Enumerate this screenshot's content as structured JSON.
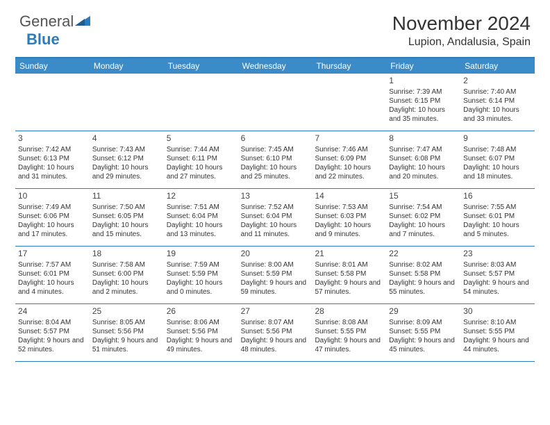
{
  "logo": {
    "text1": "General",
    "text2": "Blue"
  },
  "title": "November 2024",
  "location": "Lupion, Andalusia, Spain",
  "colors": {
    "header_bg": "#3b8bc9",
    "border": "#2b7bbf",
    "logo_blue": "#2b7bbf",
    "text": "#333333"
  },
  "weekdays": [
    "Sunday",
    "Monday",
    "Tuesday",
    "Wednesday",
    "Thursday",
    "Friday",
    "Saturday"
  ],
  "weeks": [
    [
      null,
      null,
      null,
      null,
      null,
      {
        "n": "1",
        "sr": "Sunrise: 7:39 AM",
        "ss": "Sunset: 6:15 PM",
        "dl": "Daylight: 10 hours and 35 minutes."
      },
      {
        "n": "2",
        "sr": "Sunrise: 7:40 AM",
        "ss": "Sunset: 6:14 PM",
        "dl": "Daylight: 10 hours and 33 minutes."
      }
    ],
    [
      {
        "n": "3",
        "sr": "Sunrise: 7:42 AM",
        "ss": "Sunset: 6:13 PM",
        "dl": "Daylight: 10 hours and 31 minutes."
      },
      {
        "n": "4",
        "sr": "Sunrise: 7:43 AM",
        "ss": "Sunset: 6:12 PM",
        "dl": "Daylight: 10 hours and 29 minutes."
      },
      {
        "n": "5",
        "sr": "Sunrise: 7:44 AM",
        "ss": "Sunset: 6:11 PM",
        "dl": "Daylight: 10 hours and 27 minutes."
      },
      {
        "n": "6",
        "sr": "Sunrise: 7:45 AM",
        "ss": "Sunset: 6:10 PM",
        "dl": "Daylight: 10 hours and 25 minutes."
      },
      {
        "n": "7",
        "sr": "Sunrise: 7:46 AM",
        "ss": "Sunset: 6:09 PM",
        "dl": "Daylight: 10 hours and 22 minutes."
      },
      {
        "n": "8",
        "sr": "Sunrise: 7:47 AM",
        "ss": "Sunset: 6:08 PM",
        "dl": "Daylight: 10 hours and 20 minutes."
      },
      {
        "n": "9",
        "sr": "Sunrise: 7:48 AM",
        "ss": "Sunset: 6:07 PM",
        "dl": "Daylight: 10 hours and 18 minutes."
      }
    ],
    [
      {
        "n": "10",
        "sr": "Sunrise: 7:49 AM",
        "ss": "Sunset: 6:06 PM",
        "dl": "Daylight: 10 hours and 17 minutes."
      },
      {
        "n": "11",
        "sr": "Sunrise: 7:50 AM",
        "ss": "Sunset: 6:05 PM",
        "dl": "Daylight: 10 hours and 15 minutes."
      },
      {
        "n": "12",
        "sr": "Sunrise: 7:51 AM",
        "ss": "Sunset: 6:04 PM",
        "dl": "Daylight: 10 hours and 13 minutes."
      },
      {
        "n": "13",
        "sr": "Sunrise: 7:52 AM",
        "ss": "Sunset: 6:04 PM",
        "dl": "Daylight: 10 hours and 11 minutes."
      },
      {
        "n": "14",
        "sr": "Sunrise: 7:53 AM",
        "ss": "Sunset: 6:03 PM",
        "dl": "Daylight: 10 hours and 9 minutes."
      },
      {
        "n": "15",
        "sr": "Sunrise: 7:54 AM",
        "ss": "Sunset: 6:02 PM",
        "dl": "Daylight: 10 hours and 7 minutes."
      },
      {
        "n": "16",
        "sr": "Sunrise: 7:55 AM",
        "ss": "Sunset: 6:01 PM",
        "dl": "Daylight: 10 hours and 5 minutes."
      }
    ],
    [
      {
        "n": "17",
        "sr": "Sunrise: 7:57 AM",
        "ss": "Sunset: 6:01 PM",
        "dl": "Daylight: 10 hours and 4 minutes."
      },
      {
        "n": "18",
        "sr": "Sunrise: 7:58 AM",
        "ss": "Sunset: 6:00 PM",
        "dl": "Daylight: 10 hours and 2 minutes."
      },
      {
        "n": "19",
        "sr": "Sunrise: 7:59 AM",
        "ss": "Sunset: 5:59 PM",
        "dl": "Daylight: 10 hours and 0 minutes."
      },
      {
        "n": "20",
        "sr": "Sunrise: 8:00 AM",
        "ss": "Sunset: 5:59 PM",
        "dl": "Daylight: 9 hours and 59 minutes."
      },
      {
        "n": "21",
        "sr": "Sunrise: 8:01 AM",
        "ss": "Sunset: 5:58 PM",
        "dl": "Daylight: 9 hours and 57 minutes."
      },
      {
        "n": "22",
        "sr": "Sunrise: 8:02 AM",
        "ss": "Sunset: 5:58 PM",
        "dl": "Daylight: 9 hours and 55 minutes."
      },
      {
        "n": "23",
        "sr": "Sunrise: 8:03 AM",
        "ss": "Sunset: 5:57 PM",
        "dl": "Daylight: 9 hours and 54 minutes."
      }
    ],
    [
      {
        "n": "24",
        "sr": "Sunrise: 8:04 AM",
        "ss": "Sunset: 5:57 PM",
        "dl": "Daylight: 9 hours and 52 minutes."
      },
      {
        "n": "25",
        "sr": "Sunrise: 8:05 AM",
        "ss": "Sunset: 5:56 PM",
        "dl": "Daylight: 9 hours and 51 minutes."
      },
      {
        "n": "26",
        "sr": "Sunrise: 8:06 AM",
        "ss": "Sunset: 5:56 PM",
        "dl": "Daylight: 9 hours and 49 minutes."
      },
      {
        "n": "27",
        "sr": "Sunrise: 8:07 AM",
        "ss": "Sunset: 5:56 PM",
        "dl": "Daylight: 9 hours and 48 minutes."
      },
      {
        "n": "28",
        "sr": "Sunrise: 8:08 AM",
        "ss": "Sunset: 5:55 PM",
        "dl": "Daylight: 9 hours and 47 minutes."
      },
      {
        "n": "29",
        "sr": "Sunrise: 8:09 AM",
        "ss": "Sunset: 5:55 PM",
        "dl": "Daylight: 9 hours and 45 minutes."
      },
      {
        "n": "30",
        "sr": "Sunrise: 8:10 AM",
        "ss": "Sunset: 5:55 PM",
        "dl": "Daylight: 9 hours and 44 minutes."
      }
    ]
  ]
}
